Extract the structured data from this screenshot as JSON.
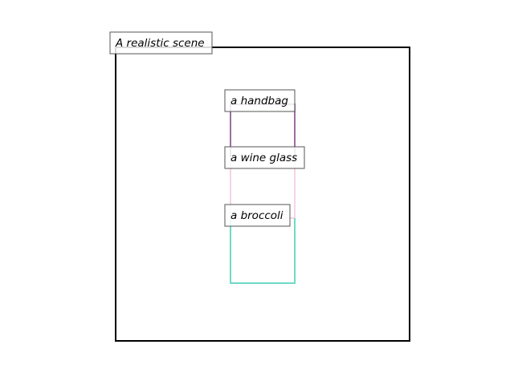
{
  "scene": {
    "label": "A realistic scene",
    "border_color": "#000000"
  },
  "objects": [
    {
      "id": "handbag",
      "label": "a handbag",
      "color": "#9b6fa0"
    },
    {
      "id": "wine-glass",
      "label": "a wine glass",
      "color": "#f7d2e6"
    },
    {
      "id": "broccoli",
      "label": "a broccoli",
      "color": "#6fd9c9"
    }
  ]
}
